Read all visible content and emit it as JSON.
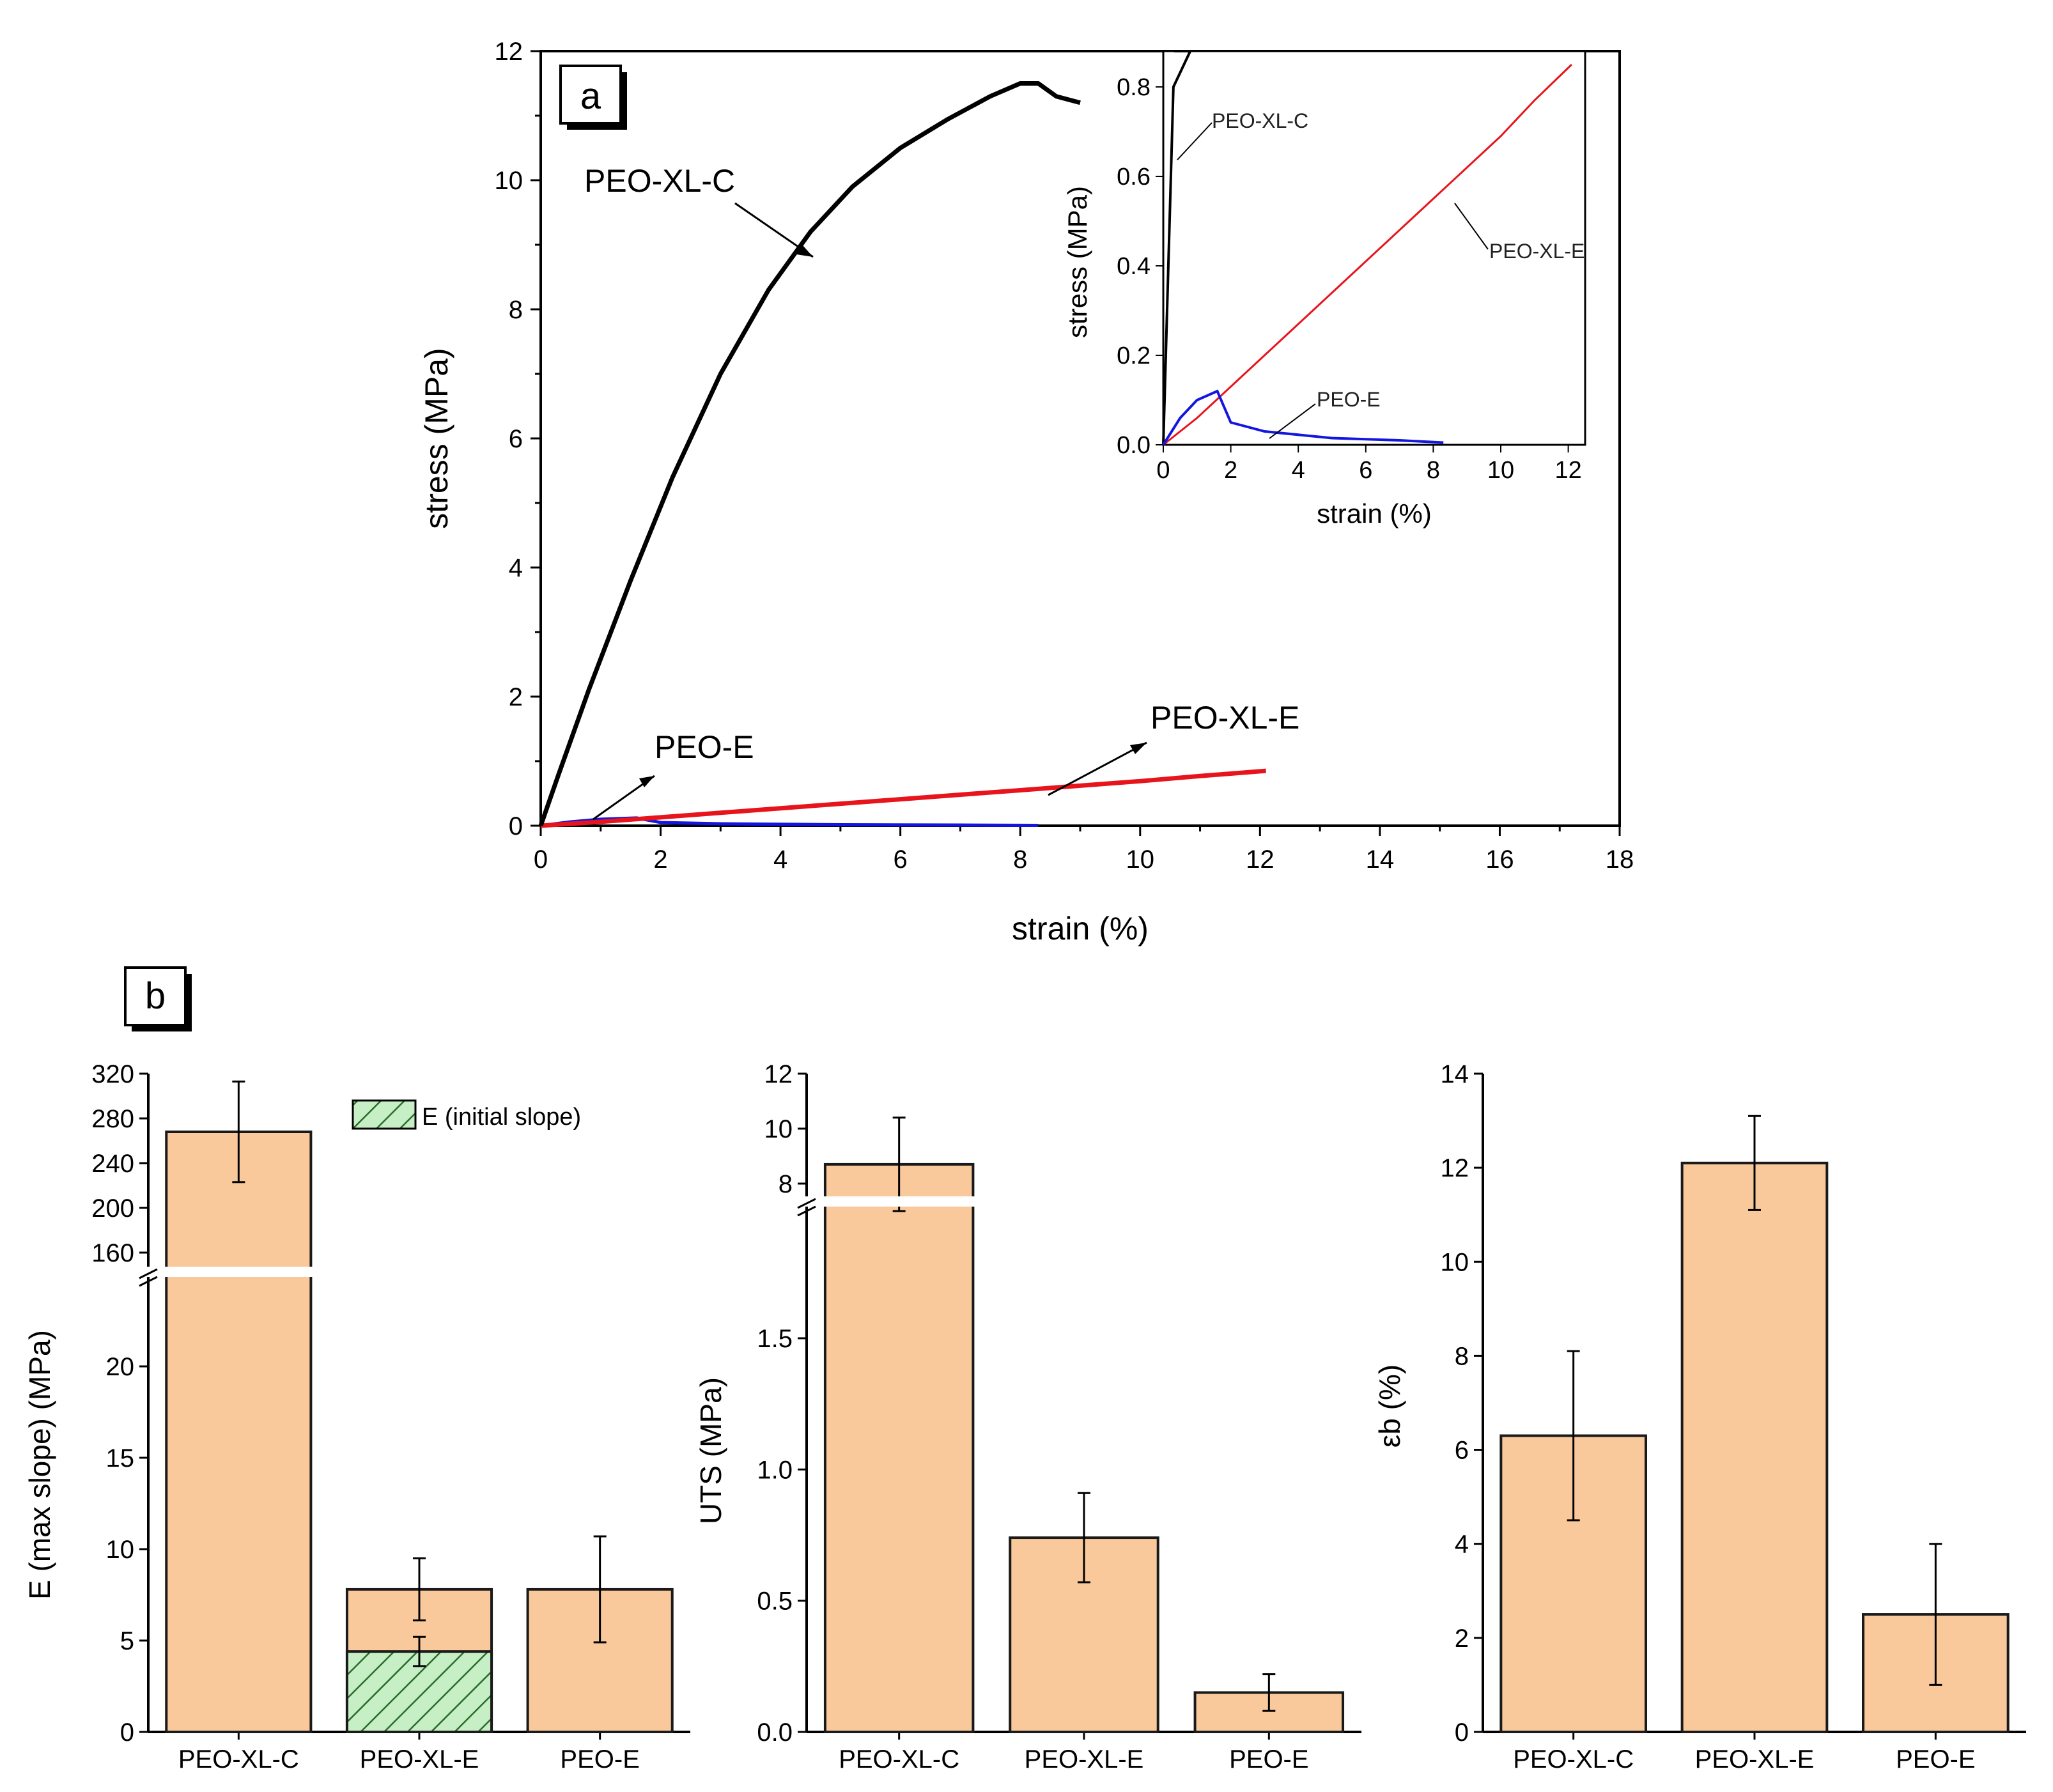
{
  "colors": {
    "bar_fill": "#f9c99c",
    "bar_stroke": "#1a1a1a",
    "hatch_fill": "#c6efc6",
    "hatch_line": "#2a6a2a",
    "peo_xl_c": "#000000",
    "peo_xl_e": "#e8141c",
    "peo_e": "#1515e0"
  },
  "chart_data": [
    {
      "panel": "a",
      "type": "line",
      "xlabel": "strain (%)",
      "ylabel": "stress (MPa)",
      "xlim": [
        0,
        18
      ],
      "ylim": [
        0,
        12
      ],
      "xticks": [
        "0",
        "2",
        "4",
        "6",
        "8",
        "10",
        "12",
        "14",
        "16",
        "18"
      ],
      "yticks": [
        "0",
        "2",
        "4",
        "6",
        "8",
        "10",
        "12"
      ],
      "series": [
        {
          "name": "PEO-XL-C",
          "x": [
            0,
            0.3,
            0.8,
            1.5,
            2.2,
            3.0,
            3.8,
            4.5,
            5.2,
            6.0,
            6.8,
            7.5,
            8.0,
            8.3,
            8.6,
            9.0
          ],
          "y": [
            0,
            0.8,
            2.1,
            3.8,
            5.4,
            7.0,
            8.3,
            9.2,
            9.9,
            10.5,
            10.95,
            11.3,
            11.5,
            11.5,
            11.3,
            11.2
          ]
        },
        {
          "name": "PEO-XL-E",
          "x": [
            0,
            1,
            2,
            3,
            4,
            5,
            6,
            7,
            8,
            9,
            10,
            11,
            12.1
          ],
          "y": [
            0,
            0.06,
            0.13,
            0.2,
            0.27,
            0.34,
            0.41,
            0.48,
            0.55,
            0.62,
            0.69,
            0.77,
            0.85
          ]
        },
        {
          "name": "PEO-E",
          "x": [
            0,
            0.5,
            1.0,
            1.6,
            2.0,
            3.0,
            5.0,
            7.0,
            8.3
          ],
          "y": [
            0,
            0.06,
            0.1,
            0.12,
            0.05,
            0.03,
            0.015,
            0.01,
            0.005
          ]
        }
      ],
      "annotations": [
        "PEO-XL-C",
        "PEO-XL-E",
        "PEO-E"
      ],
      "inset": {
        "xlabel": "strain (%)",
        "ylabel": "stress (MPa)",
        "xlim": [
          0,
          12.5
        ],
        "ylim": [
          0,
          0.88
        ],
        "xticks": [
          "0",
          "2",
          "4",
          "6",
          "8",
          "10",
          "12"
        ],
        "yticks": [
          "0.0",
          "0.2",
          "0.4",
          "0.6",
          "0.8"
        ],
        "annotations": [
          "PEO-XL-C",
          "PEO-XL-E",
          "PEO-E"
        ]
      }
    },
    {
      "panel": "b",
      "type": "bar",
      "ylabel": "E (max slope) (MPa)",
      "categories": [
        "PEO-XL-C",
        "PEO-XL-E",
        "PEO-E"
      ],
      "series": [
        {
          "name": "E (max slope)",
          "values": [
            268,
            7.8,
            7.8
          ],
          "errors": [
            45,
            1.7,
            2.9
          ]
        },
        {
          "name": "E (initial slope)",
          "values": [
            null,
            4.4,
            null
          ],
          "errors": [
            null,
            0.8,
            null
          ]
        }
      ],
      "legend": "E (initial slope)",
      "axis_break": true,
      "yticks_lower": [
        "0",
        "5",
        "10",
        "15",
        "20"
      ],
      "yticks_upper": [
        "160",
        "200",
        "240",
        "280",
        "320"
      ]
    },
    {
      "panel": "b",
      "type": "bar",
      "ylabel": "UTS (MPa)",
      "categories": [
        "PEO-XL-C",
        "PEO-XL-E",
        "PEO-E"
      ],
      "series": [
        {
          "name": "UTS",
          "values": [
            8.7,
            0.74,
            0.15
          ],
          "errors": [
            1.7,
            0.17,
            0.07
          ]
        }
      ],
      "axis_break": true,
      "yticks_lower": [
        "0.0",
        "0.5",
        "1.0",
        "1.5"
      ],
      "yticks_upper": [
        "8",
        "10",
        "12"
      ]
    },
    {
      "panel": "b",
      "type": "bar",
      "ylabel": "εb (%)",
      "categories": [
        "PEO-XL-C",
        "PEO-XL-E",
        "PEO-E"
      ],
      "series": [
        {
          "name": "εb",
          "values": [
            6.3,
            12.1,
            2.5
          ],
          "errors": [
            1.8,
            1.0,
            1.5
          ]
        }
      ],
      "ylim": [
        0,
        14
      ],
      "yticks": [
        "0",
        "2",
        "4",
        "6",
        "8",
        "10",
        "12",
        "14"
      ]
    }
  ],
  "panel_labels": {
    "a": "a",
    "b": "b"
  }
}
